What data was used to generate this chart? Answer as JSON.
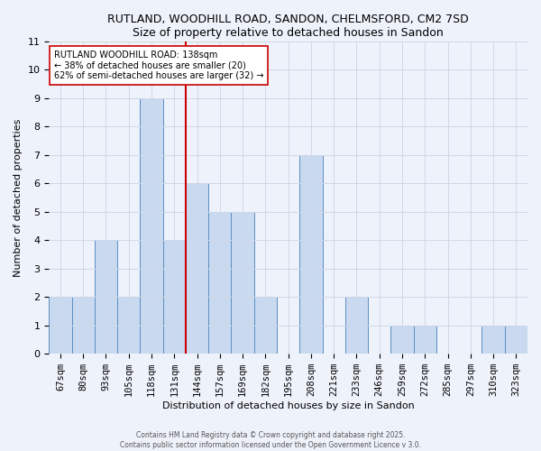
{
  "title_line1": "RUTLAND, WOODHILL ROAD, SANDON, CHELMSFORD, CM2 7SD",
  "title_line2": "Size of property relative to detached houses in Sandon",
  "xlabel": "Distribution of detached houses by size in Sandon",
  "ylabel": "Number of detached properties",
  "categories": [
    "67sqm",
    "80sqm",
    "93sqm",
    "105sqm",
    "118sqm",
    "131sqm",
    "144sqm",
    "157sqm",
    "169sqm",
    "182sqm",
    "195sqm",
    "208sqm",
    "221sqm",
    "233sqm",
    "246sqm",
    "259sqm",
    "272sqm",
    "285sqm",
    "297sqm",
    "310sqm",
    "323sqm"
  ],
  "values": [
    2,
    2,
    4,
    2,
    9,
    4,
    6,
    5,
    5,
    2,
    0,
    7,
    0,
    2,
    0,
    1,
    1,
    0,
    0,
    1,
    1
  ],
  "bar_color": "#c8d9f0",
  "bar_edge_color": "#5b8ec4",
  "reference_line_x": 5.5,
  "reference_line_color": "#cc0000",
  "annotation_text": "RUTLAND WOODHILL ROAD: 138sqm\n← 38% of detached houses are smaller (20)\n62% of semi-detached houses are larger (32) →",
  "annotation_box_color": "#ffffff",
  "annotation_box_edge_color": "#cc0000",
  "ylim": [
    0,
    11
  ],
  "yticks": [
    0,
    1,
    2,
    3,
    4,
    5,
    6,
    7,
    8,
    9,
    10,
    11
  ],
  "grid_color": "#d0d8e8",
  "background_color": "#eef2fa",
  "footer_text": "Contains HM Land Registry data © Crown copyright and database right 2025.\nContains public sector information licensed under the Open Government Licence v 3.0."
}
